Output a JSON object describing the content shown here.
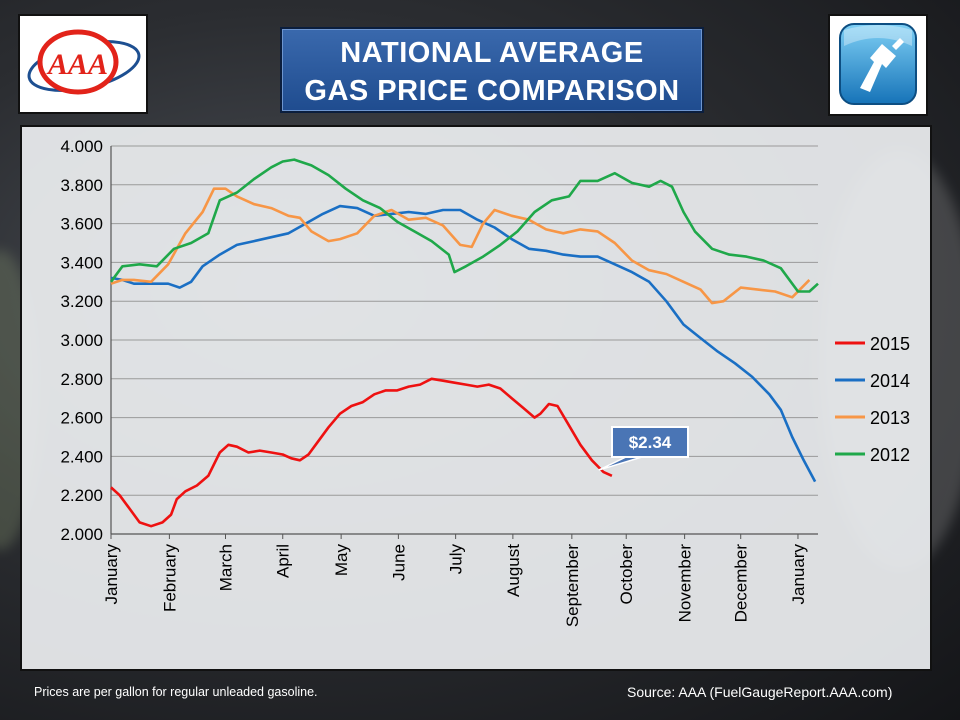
{
  "title": {
    "line1": "NATIONAL AVERAGE",
    "line2": "GAS PRICE COMPARISON"
  },
  "logos": {
    "left_text": "AAA",
    "left_icon": "aaa-logo-icon",
    "right_icon": "gas-pump-icon"
  },
  "footnote": "Prices are per gallon for regular unleaded gasoline.",
  "source": "Source: AAA (FuelGaugeReport.AAA.com)",
  "colors": {
    "2015": "#ee1111",
    "2014": "#1a6fc4",
    "2013": "#f79646",
    "2012": "#1fa84a",
    "callout": "#4a75b5"
  },
  "chart_data": {
    "type": "line",
    "x_unit": "month (fractional, 0 = January 1)",
    "categories": [
      "January",
      "February",
      "March",
      "April",
      "May",
      "June",
      "July",
      "August",
      "September",
      "October",
      "November",
      "December",
      "January"
    ],
    "ylim": [
      2.0,
      4.0
    ],
    "yticks": [
      "2.000",
      "2.200",
      "2.400",
      "2.600",
      "2.800",
      "3.000",
      "3.200",
      "3.400",
      "3.600",
      "3.800",
      "4.000"
    ],
    "grid": true,
    "legend_position": "right",
    "annotation": {
      "text": "$2.34",
      "x": 8.45,
      "y": 2.34
    },
    "series": [
      {
        "name": "2015",
        "color": "#ee1111",
        "points": [
          [
            0,
            2.24
          ],
          [
            0.15,
            2.2
          ],
          [
            0.3,
            2.14
          ],
          [
            0.5,
            2.06
          ],
          [
            0.7,
            2.04
          ],
          [
            0.9,
            2.06
          ],
          [
            1.05,
            2.1
          ],
          [
            1.15,
            2.18
          ],
          [
            1.3,
            2.22
          ],
          [
            1.5,
            2.25
          ],
          [
            1.7,
            2.3
          ],
          [
            1.9,
            2.42
          ],
          [
            2.05,
            2.46
          ],
          [
            2.2,
            2.45
          ],
          [
            2.4,
            2.42
          ],
          [
            2.6,
            2.43
          ],
          [
            2.8,
            2.42
          ],
          [
            3.0,
            2.41
          ],
          [
            3.15,
            2.39
          ],
          [
            3.3,
            2.38
          ],
          [
            3.45,
            2.41
          ],
          [
            3.6,
            2.47
          ],
          [
            3.8,
            2.55
          ],
          [
            4.0,
            2.62
          ],
          [
            4.2,
            2.66
          ],
          [
            4.4,
            2.68
          ],
          [
            4.6,
            2.72
          ],
          [
            4.8,
            2.74
          ],
          [
            5.0,
            2.74
          ],
          [
            5.2,
            2.76
          ],
          [
            5.4,
            2.77
          ],
          [
            5.6,
            2.8
          ],
          [
            5.8,
            2.79
          ],
          [
            6.0,
            2.78
          ],
          [
            6.2,
            2.77
          ],
          [
            6.4,
            2.76
          ],
          [
            6.6,
            2.77
          ],
          [
            6.8,
            2.75
          ],
          [
            7.0,
            2.7
          ],
          [
            7.2,
            2.65
          ],
          [
            7.4,
            2.6
          ],
          [
            7.5,
            2.62
          ],
          [
            7.65,
            2.67
          ],
          [
            7.8,
            2.66
          ],
          [
            8.0,
            2.56
          ],
          [
            8.2,
            2.46
          ],
          [
            8.4,
            2.38
          ],
          [
            8.6,
            2.32
          ],
          [
            8.75,
            2.3
          ]
        ]
      },
      {
        "name": "2014",
        "color": "#1a6fc4",
        "points": [
          [
            0,
            3.32
          ],
          [
            0.2,
            3.31
          ],
          [
            0.4,
            3.29
          ],
          [
            0.7,
            3.29
          ],
          [
            1.0,
            3.29
          ],
          [
            1.2,
            3.27
          ],
          [
            1.4,
            3.3
          ],
          [
            1.6,
            3.38
          ],
          [
            1.9,
            3.44
          ],
          [
            2.2,
            3.49
          ],
          [
            2.5,
            3.51
          ],
          [
            2.8,
            3.53
          ],
          [
            3.1,
            3.55
          ],
          [
            3.4,
            3.6
          ],
          [
            3.7,
            3.65
          ],
          [
            4.0,
            3.69
          ],
          [
            4.3,
            3.68
          ],
          [
            4.6,
            3.64
          ],
          [
            4.9,
            3.65
          ],
          [
            5.2,
            3.66
          ],
          [
            5.5,
            3.65
          ],
          [
            5.8,
            3.67
          ],
          [
            6.1,
            3.67
          ],
          [
            6.4,
            3.62
          ],
          [
            6.7,
            3.58
          ],
          [
            7.0,
            3.52
          ],
          [
            7.3,
            3.47
          ],
          [
            7.6,
            3.46
          ],
          [
            7.9,
            3.44
          ],
          [
            8.2,
            3.43
          ],
          [
            8.5,
            3.43
          ],
          [
            8.8,
            3.39
          ],
          [
            9.1,
            3.35
          ],
          [
            9.4,
            3.3
          ],
          [
            9.7,
            3.2
          ],
          [
            10.0,
            3.08
          ],
          [
            10.3,
            3.01
          ],
          [
            10.6,
            2.94
          ],
          [
            10.9,
            2.88
          ],
          [
            11.2,
            2.81
          ],
          [
            11.5,
            2.72
          ],
          [
            11.7,
            2.64
          ],
          [
            11.9,
            2.5
          ],
          [
            12.1,
            2.38
          ],
          [
            12.3,
            2.27
          ]
        ]
      },
      {
        "name": "2013",
        "color": "#f79646",
        "points": [
          [
            0,
            3.29
          ],
          [
            0.2,
            3.31
          ],
          [
            0.4,
            3.31
          ],
          [
            0.7,
            3.3
          ],
          [
            1.0,
            3.39
          ],
          [
            1.3,
            3.55
          ],
          [
            1.6,
            3.66
          ],
          [
            1.8,
            3.78
          ],
          [
            2.0,
            3.78
          ],
          [
            2.2,
            3.74
          ],
          [
            2.5,
            3.7
          ],
          [
            2.8,
            3.68
          ],
          [
            3.1,
            3.64
          ],
          [
            3.3,
            3.63
          ],
          [
            3.5,
            3.56
          ],
          [
            3.8,
            3.51
          ],
          [
            4.0,
            3.52
          ],
          [
            4.3,
            3.55
          ],
          [
            4.6,
            3.64
          ],
          [
            4.9,
            3.67
          ],
          [
            5.2,
            3.62
          ],
          [
            5.5,
            3.63
          ],
          [
            5.8,
            3.59
          ],
          [
            6.1,
            3.49
          ],
          [
            6.3,
            3.48
          ],
          [
            6.5,
            3.6
          ],
          [
            6.7,
            3.67
          ],
          [
            7.0,
            3.64
          ],
          [
            7.3,
            3.62
          ],
          [
            7.6,
            3.57
          ],
          [
            7.9,
            3.55
          ],
          [
            8.2,
            3.57
          ],
          [
            8.5,
            3.56
          ],
          [
            8.8,
            3.5
          ],
          [
            9.1,
            3.41
          ],
          [
            9.4,
            3.36
          ],
          [
            9.7,
            3.34
          ],
          [
            10.0,
            3.3
          ],
          [
            10.3,
            3.26
          ],
          [
            10.5,
            3.19
          ],
          [
            10.7,
            3.2
          ],
          [
            11.0,
            3.27
          ],
          [
            11.3,
            3.26
          ],
          [
            11.6,
            3.25
          ],
          [
            11.9,
            3.22
          ],
          [
            12.2,
            3.31
          ]
        ]
      },
      {
        "name": "2012",
        "color": "#1fa84a",
        "points": [
          [
            0,
            3.3
          ],
          [
            0.2,
            3.38
          ],
          [
            0.5,
            3.39
          ],
          [
            0.8,
            3.38
          ],
          [
            1.1,
            3.47
          ],
          [
            1.4,
            3.5
          ],
          [
            1.7,
            3.55
          ],
          [
            1.9,
            3.72
          ],
          [
            2.2,
            3.76
          ],
          [
            2.5,
            3.83
          ],
          [
            2.8,
            3.89
          ],
          [
            3.0,
            3.92
          ],
          [
            3.2,
            3.93
          ],
          [
            3.5,
            3.9
          ],
          [
            3.8,
            3.85
          ],
          [
            4.1,
            3.78
          ],
          [
            4.4,
            3.72
          ],
          [
            4.7,
            3.68
          ],
          [
            5.0,
            3.61
          ],
          [
            5.3,
            3.56
          ],
          [
            5.6,
            3.51
          ],
          [
            5.9,
            3.44
          ],
          [
            6.0,
            3.35
          ],
          [
            6.2,
            3.38
          ],
          [
            6.5,
            3.43
          ],
          [
            6.8,
            3.49
          ],
          [
            7.1,
            3.56
          ],
          [
            7.4,
            3.66
          ],
          [
            7.7,
            3.72
          ],
          [
            8.0,
            3.74
          ],
          [
            8.2,
            3.82
          ],
          [
            8.5,
            3.82
          ],
          [
            8.8,
            3.86
          ],
          [
            9.1,
            3.81
          ],
          [
            9.4,
            3.79
          ],
          [
            9.6,
            3.82
          ],
          [
            9.8,
            3.79
          ],
          [
            10.0,
            3.66
          ],
          [
            10.2,
            3.56
          ],
          [
            10.5,
            3.47
          ],
          [
            10.8,
            3.44
          ],
          [
            11.1,
            3.43
          ],
          [
            11.4,
            3.41
          ],
          [
            11.7,
            3.37
          ],
          [
            12.0,
            3.25
          ],
          [
            12.2,
            3.25
          ],
          [
            12.35,
            3.29
          ]
        ]
      }
    ]
  }
}
